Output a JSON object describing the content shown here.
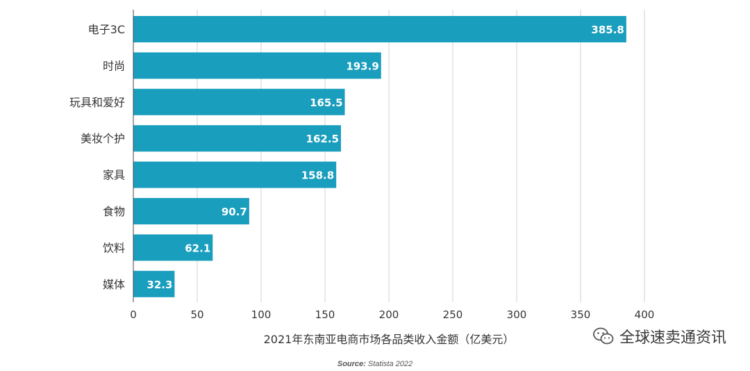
{
  "chart_data": {
    "type": "bar",
    "orientation": "horizontal",
    "categories": [
      "电子3C",
      "时尚",
      "玩具和爱好",
      "美妆个护",
      "家具",
      "食物",
      "饮料",
      "媒体"
    ],
    "values": [
      385.8,
      193.9,
      165.5,
      162.5,
      158.8,
      90.7,
      62.1,
      32.3
    ],
    "value_labels": [
      "385.8",
      "193.9",
      "165.5",
      "162.5",
      "158.8",
      "90.7",
      "62.1",
      "32.3"
    ],
    "xlabel": "2021年东南亚电商市场各品类收入金额（亿美元）",
    "ylabel": "",
    "xlim": [
      0,
      400
    ],
    "xticks": [
      0,
      50,
      100,
      150,
      200,
      250,
      300,
      350,
      400
    ],
    "grid": "vertical",
    "bar_color": "#1a9ebd"
  },
  "source": {
    "label": "Source:",
    "text": " Statista 2022"
  },
  "watermark": {
    "text": "全球速卖通资讯",
    "icon": "wechat-icon"
  }
}
